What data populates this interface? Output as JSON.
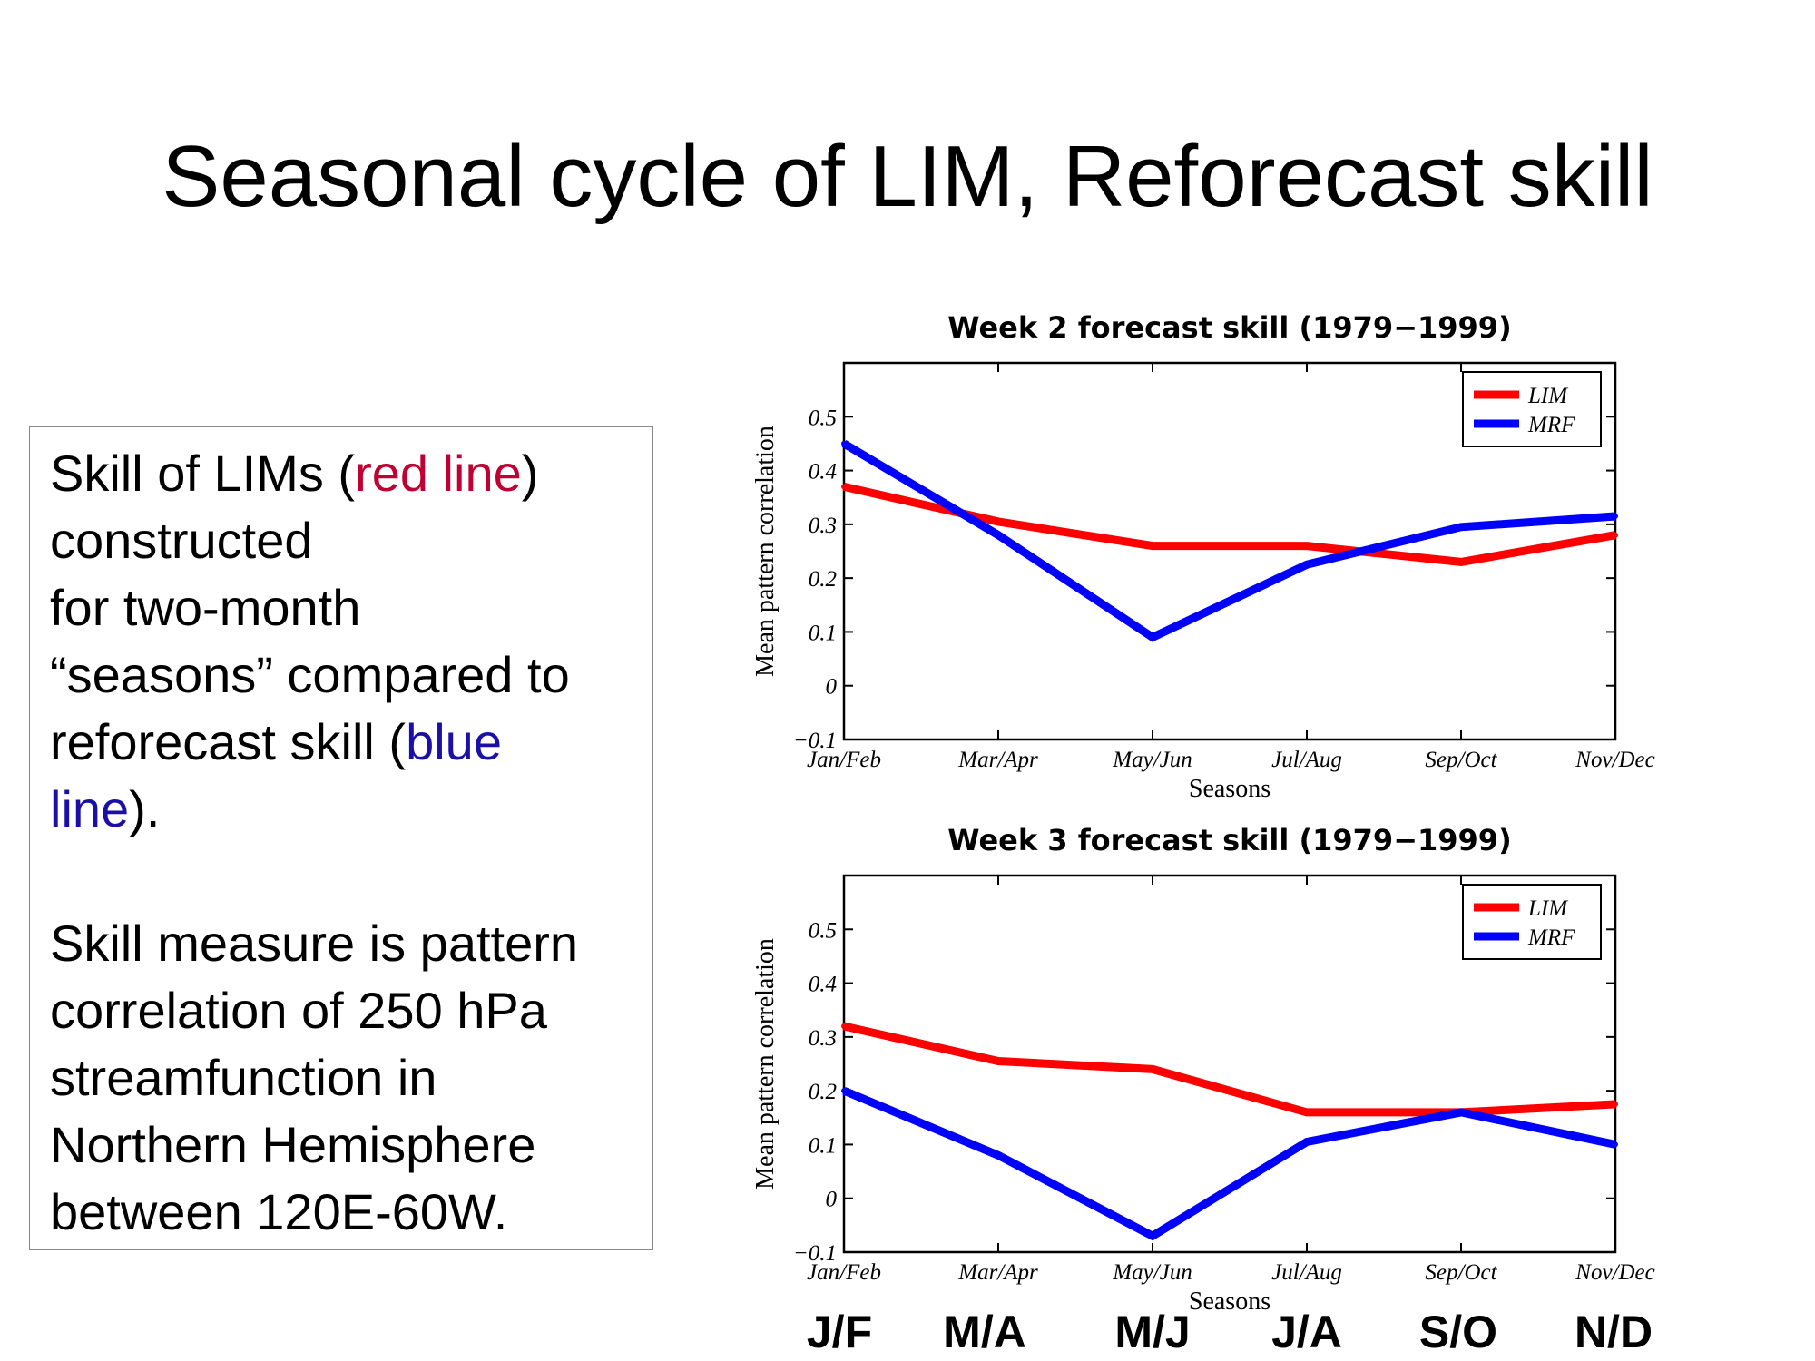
{
  "slide": {
    "title": "Seasonal cycle of LIM, Reforecast skill",
    "colors": {
      "lim": "#ff0000",
      "mrf": "#0000ff",
      "text_red": "#c00033",
      "text_blue": "#1a10a8"
    }
  },
  "textbox": {
    "p1_a": "Skill of LIMs (",
    "p1_red": "red line",
    "p1_b": ")",
    "p1_c": "constructed",
    "p1_d": "for two-month",
    "p1_e": "“seasons” compared to",
    "p1_f": "reforecast skill (",
    "p1_blue1": "blue",
    "p1_blue2": "line",
    "p1_g": ").",
    "p2_lines": [
      "Skill measure is pattern",
      "correlation of 250 hPa",
      "streamfunction in",
      "Northern Hemisphere",
      "between 120E-60W."
    ]
  },
  "season_abbreviations": [
    "J/F",
    "M/A",
    "M/J",
    "J/A",
    "S/O",
    "N/D"
  ],
  "chart_data": [
    {
      "type": "line",
      "title": "Week 2 forecast skill (1979−1999)",
      "xlabel": "Seasons",
      "ylabel": "Mean pattern correlation",
      "categories": [
        "Jan/Feb",
        "Mar/Apr",
        "May/Jun",
        "Jul/Aug",
        "Sep/Oct",
        "Nov/Dec"
      ],
      "ylim": [
        -0.1,
        0.6
      ],
      "yticks": [
        -0.1,
        0,
        0.1,
        0.2,
        0.3,
        0.4,
        0.5
      ],
      "ytick_labels": [
        "−0.1",
        "0",
        "0.1",
        "0.2",
        "0.3",
        "0.4",
        "0.5"
      ],
      "grid": false,
      "legend": "top-right",
      "series": [
        {
          "name": "LIM",
          "color": "#ff0000",
          "values": [
            0.37,
            0.305,
            0.26,
            0.26,
            0.23,
            0.28
          ]
        },
        {
          "name": "MRF",
          "color": "#0000ff",
          "values": [
            0.45,
            0.28,
            0.09,
            0.225,
            0.295,
            0.315
          ]
        }
      ]
    },
    {
      "type": "line",
      "title": "Week 3 forecast skill (1979−1999)",
      "xlabel": "Seasons",
      "ylabel": "Mean pattern correlation",
      "categories": [
        "Jan/Feb",
        "Mar/Apr",
        "May/Jun",
        "Jul/Aug",
        "Sep/Oct",
        "Nov/Dec"
      ],
      "ylim": [
        -0.1,
        0.6
      ],
      "yticks": [
        -0.1,
        0,
        0.1,
        0.2,
        0.3,
        0.4,
        0.5
      ],
      "ytick_labels": [
        "−0.1",
        "0",
        "0.1",
        "0.2",
        "0.3",
        "0.4",
        "0.5"
      ],
      "grid": false,
      "legend": "top-right",
      "series": [
        {
          "name": "LIM",
          "color": "#ff0000",
          "values": [
            0.32,
            0.255,
            0.24,
            0.16,
            0.16,
            0.175
          ]
        },
        {
          "name": "MRF",
          "color": "#0000ff",
          "values": [
            0.2,
            0.08,
            -0.07,
            0.105,
            0.16,
            0.1
          ]
        }
      ]
    }
  ]
}
